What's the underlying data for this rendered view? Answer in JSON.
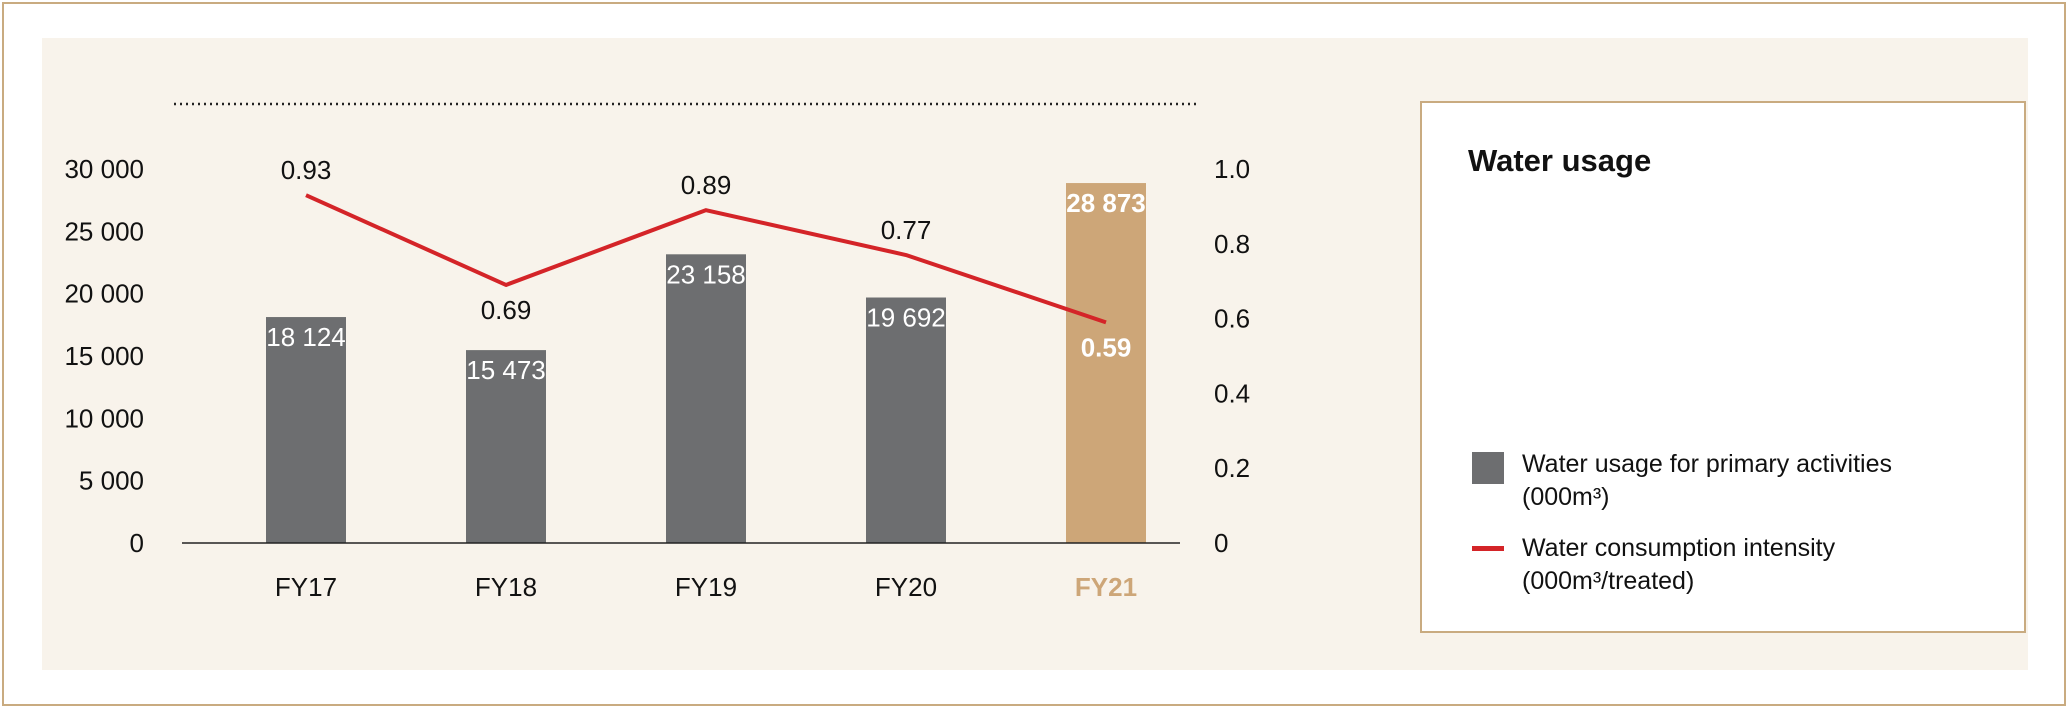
{
  "chart_data": {
    "type": "bar",
    "title": "Water usage",
    "categories": [
      "FY17",
      "FY18",
      "FY19",
      "FY20",
      "FY21"
    ],
    "highlight_category": "FY21",
    "y_left": {
      "range": [
        0,
        30000
      ],
      "ticks": [
        "0",
        "5 000",
        "10 000",
        "15 000",
        "20 000",
        "25 000",
        "30 000"
      ]
    },
    "y_right": {
      "range": [
        0,
        1.0
      ],
      "ticks": [
        "0",
        "0.2",
        "0.4",
        "0.6",
        "0.8",
        "1.0"
      ]
    },
    "series": [
      {
        "name": "Water usage for primary activities",
        "unit": "(000m³)",
        "type": "bar",
        "axis": "left",
        "values": [
          18124,
          15473,
          23158,
          19692,
          28873
        ],
        "labels": [
          "18 124",
          "15 473",
          "23 158",
          "19 692",
          "28 873"
        ]
      },
      {
        "name": "Water consumption intensity",
        "unit": "(000m³/treated)",
        "type": "line",
        "axis": "right",
        "values": [
          0.93,
          0.69,
          0.89,
          0.77,
          0.59
        ],
        "labels": [
          "0.93",
          "0.69",
          "0.89",
          "0.77",
          "0.59"
        ]
      }
    ],
    "legend_position": "right",
    "grid": false
  },
  "colors": {
    "bar": "#6d6e70",
    "bar_highlight": "#cda678",
    "line": "#d42428",
    "highlight_text": "#cda678",
    "frame": "#c9ab80",
    "panel_bg": "#f8f3eb"
  }
}
